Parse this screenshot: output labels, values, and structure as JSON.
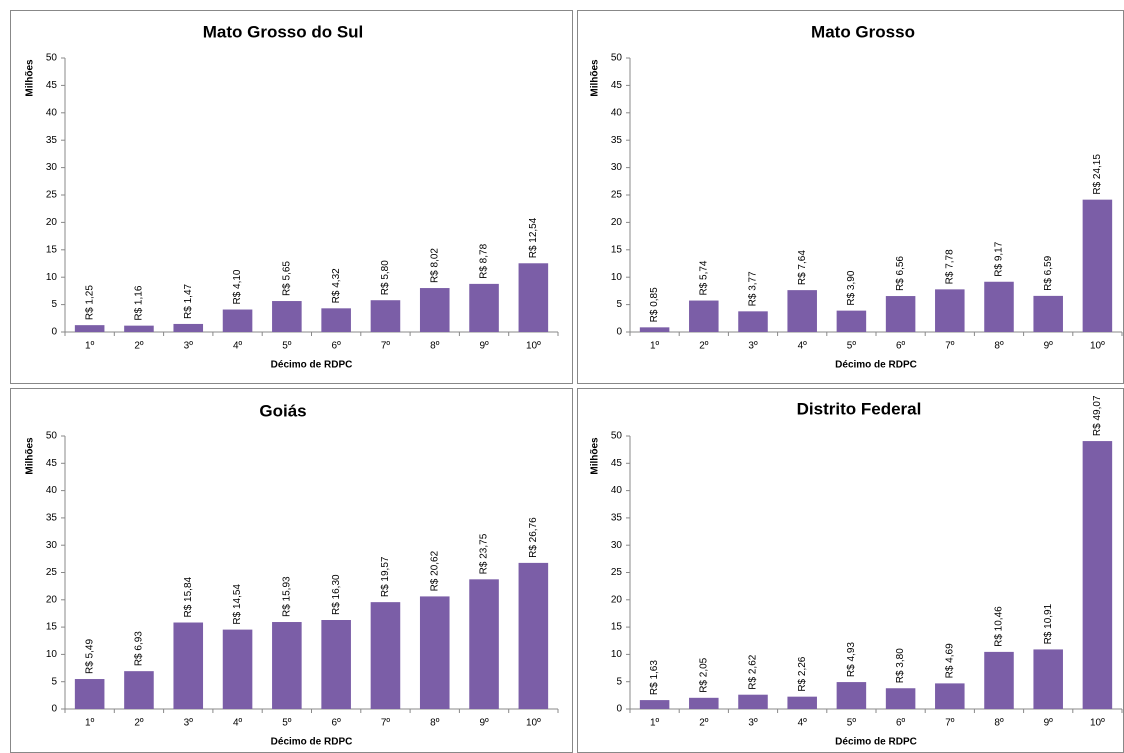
{
  "chart_data": [
    {
      "type": "bar",
      "title": "Mato Grosso do Sul",
      "x_label": "Décimo de RDPC",
      "y_label": "Milhões",
      "categories": [
        "1º",
        "2º",
        "3º",
        "4º",
        "5º",
        "6º",
        "7º",
        "8º",
        "9º",
        "10º"
      ],
      "values": [
        1.25,
        1.16,
        1.47,
        4.1,
        5.65,
        4.32,
        5.8,
        8.02,
        8.78,
        12.54
      ],
      "value_labels": [
        "R$ 1,25",
        "R$ 1,16",
        "R$ 1,47",
        "R$ 4,10",
        "R$ 5,65",
        "R$ 4,32",
        "R$ 5,80",
        "R$ 8,02",
        "R$ 8,78",
        "R$ 12,54"
      ],
      "color": "#7b5ea7",
      "ylim": [
        0,
        50
      ],
      "yticks": [
        0,
        5,
        10,
        15,
        20,
        25,
        30,
        35,
        40,
        45,
        50
      ]
    },
    {
      "type": "bar",
      "title": "Mato Grosso",
      "x_label": "Décimo de RDPC",
      "y_label": "Milhões",
      "categories": [
        "1º",
        "2º",
        "3º",
        "4º",
        "5º",
        "6º",
        "7º",
        "8º",
        "9º",
        "10º"
      ],
      "values": [
        0.85,
        5.74,
        3.77,
        7.64,
        3.9,
        6.56,
        7.78,
        9.17,
        6.59,
        24.15
      ],
      "value_labels": [
        "R$ 0,85",
        "R$ 5,74",
        "R$ 3,77",
        "R$ 7,64",
        "R$ 3,90",
        "R$ 6,56",
        "R$ 7,78",
        "R$ 9,17",
        "R$ 6,59",
        "R$ 24,15"
      ],
      "color": "#7b5ea7",
      "ylim": [
        0,
        50
      ],
      "yticks": [
        0,
        5,
        10,
        15,
        20,
        25,
        30,
        35,
        40,
        45,
        50
      ]
    },
    {
      "type": "bar",
      "title": "Goiás",
      "x_label": "Décimo de RDPC",
      "y_label": "Milhões",
      "categories": [
        "1º",
        "2º",
        "3º",
        "4º",
        "5º",
        "6º",
        "7º",
        "8º",
        "9º",
        "10º"
      ],
      "values": [
        5.49,
        6.93,
        15.84,
        14.54,
        15.93,
        16.3,
        19.57,
        20.62,
        23.75,
        26.76
      ],
      "value_labels": [
        "R$ 5,49",
        "R$ 6,93",
        "R$ 15,84",
        "R$ 14,54",
        "R$ 15,93",
        "R$ 16,30",
        "R$ 19,57",
        "R$ 20,62",
        "R$ 23,75",
        "R$ 26,76"
      ],
      "color": "#7b5ea7",
      "ylim": [
        0,
        50
      ],
      "yticks": [
        0,
        5,
        10,
        15,
        20,
        25,
        30,
        35,
        40,
        45,
        50
      ]
    },
    {
      "type": "bar",
      "title": "Distrito Federal",
      "x_label": "Décimo de RDPC",
      "y_label": "Milhões",
      "categories": [
        "1º",
        "2º",
        "3º",
        "4º",
        "5º",
        "6º",
        "7º",
        "8º",
        "9º",
        "10º"
      ],
      "values": [
        1.63,
        2.05,
        2.62,
        2.26,
        4.93,
        3.8,
        4.69,
        10.46,
        10.91,
        49.07
      ],
      "value_labels": [
        "R$ 1,63",
        "R$ 2,05",
        "R$ 2,62",
        "R$ 2,26",
        "R$ 4,93",
        "R$ 3,80",
        "R$ 4,69",
        "R$ 10,46",
        "R$ 10,91",
        "R$ 49,07"
      ],
      "color": "#7b5ea7",
      "ylim": [
        0,
        50
      ],
      "yticks": [
        0,
        5,
        10,
        15,
        20,
        25,
        30,
        35,
        40,
        45,
        50
      ]
    }
  ]
}
